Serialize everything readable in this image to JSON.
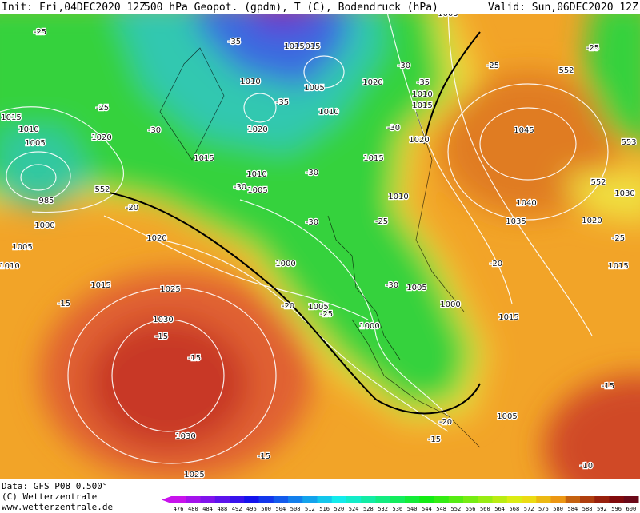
{
  "header": {
    "init": "Init: Fri,04DEC2020 12Z",
    "title": "500 hPa Geopot. (gpdm), T (C), Bodendruck (hPa)",
    "valid": "Valid: Sun,06DEC2020 12Z"
  },
  "footer": {
    "data": "Data: GFS P08 0.500°",
    "copyright": "(C) Wetterzentrale",
    "website": "www.wetterzentrale.de"
  },
  "legend": {
    "levels": [
      476,
      480,
      484,
      488,
      492,
      496,
      500,
      504,
      508,
      512,
      516,
      520,
      524,
      528,
      532,
      536,
      540,
      544,
      548,
      552,
      556,
      560,
      564,
      568,
      572,
      576,
      580,
      584,
      588,
      592,
      596,
      600
    ]
  },
  "map": {
    "labels": [
      "-25",
      "1015",
      "1010",
      "1005",
      "985",
      "-25",
      "1020",
      "552",
      "1000",
      "1005",
      "1010",
      "-20",
      "1020",
      "1015",
      "-15",
      "1025",
      "1030",
      "-15",
      "-15",
      "1030",
      "1025",
      "-15",
      "-35",
      "1015",
      "015",
      "1005",
      "1010",
      "-35",
      "1010",
      "1020",
      "1015",
      "-30",
      "1020",
      "-30",
      "-35",
      "1010",
      "1015",
      "-30",
      "1020",
      "1015",
      "-30",
      "1010",
      "1005",
      "-30",
      "1010",
      "-25",
      "-30",
      "1000",
      "-30",
      "1005",
      "1000",
      "1005",
      "-20",
      "1000",
      "-25",
      "-20",
      "-15",
      "1005",
      "1015",
      "1040",
      "1035",
      "1045",
      "-25",
      "-25",
      "552",
      "553",
      "552",
      "1030",
      "1020",
      "-25",
      "1015",
      "-20",
      "-15",
      "-10",
      "1005"
    ]
  }
}
